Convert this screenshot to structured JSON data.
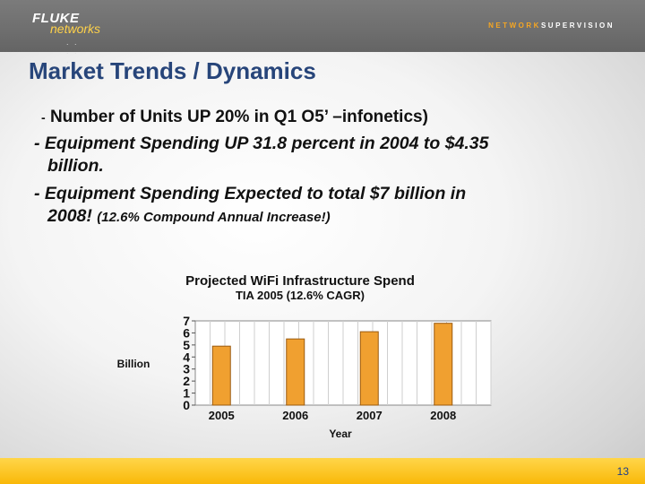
{
  "brand": {
    "logo_top": "FLUKE",
    "logo_bottom": "networks",
    "logo_dots": ". . . . .",
    "tagline_a": "NETWORK",
    "tagline_b": "SUPERVISION"
  },
  "title": "Market Trends / Dynamics",
  "bullets": {
    "b1_dash": "-",
    "b1": "Number of Units UP 20% in Q1 O5’ –infonetics)",
    "b2_line1": "- Equipment Spending UP 31.8 percent in 2004 to $4.35",
    "b2_line2": "billion.",
    "b3_line1": "- Equipment Spending Expected to total $7 billion in",
    "b3_line2a": "2008! ",
    "b3_line2b": "(12.6% Compound Annual Increase!)"
  },
  "chart_data": {
    "type": "bar",
    "title": "Projected WiFi Infrastructure Spend",
    "subtitle": "TIA 2005 (12.6% CAGR)",
    "xlabel": "Year",
    "ylabel": "Billion",
    "categories": [
      "2005",
      "2006",
      "2007",
      "2008"
    ],
    "values": [
      4.9,
      5.5,
      6.1,
      6.8
    ],
    "ylim": [
      0,
      7
    ],
    "yticks": [
      "0",
      "1",
      "2",
      "3",
      "4",
      "5",
      "6",
      "7"
    ],
    "bar_color": "#f0a030",
    "grid": true
  },
  "footer": {
    "page_number": "13"
  },
  "colors": {
    "title": "#27457a",
    "header": "#707070",
    "footer": "#fbc21e"
  }
}
